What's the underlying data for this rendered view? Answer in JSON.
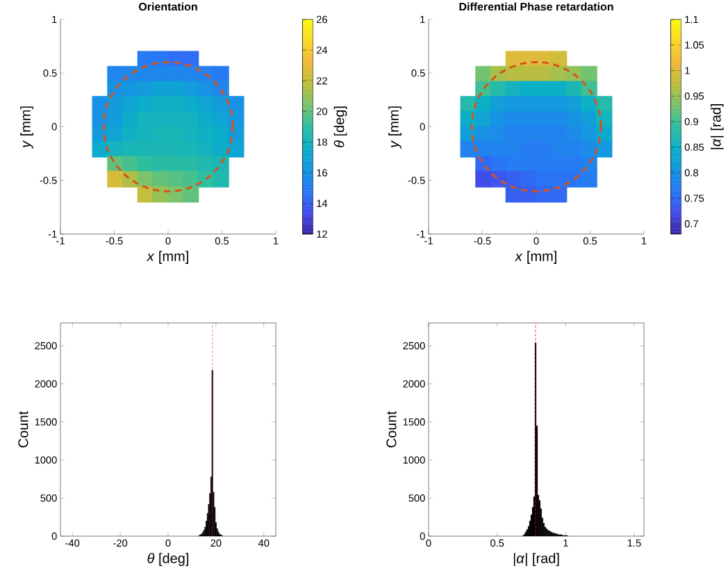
{
  "chart_data": [
    {
      "type": "scatter",
      "title": "Orientation",
      "xlabel": "*x* [mm]",
      "ylabel": "*y* [mm]",
      "clabel": "*θ* [deg]",
      "xlim": [
        -1,
        1
      ],
      "ylim": [
        -1,
        1
      ],
      "xticks": [
        -1,
        -0.5,
        0,
        0.5,
        1
      ],
      "yticks": [
        -1,
        -0.5,
        0,
        0.5,
        1
      ],
      "clim": [
        12,
        26
      ],
      "cticks": [
        12,
        14,
        16,
        18,
        20,
        22,
        24,
        26
      ],
      "series": [
        {
          "type": "scatter",
          "marker": "square",
          "x": [
            -0.21,
            -0.07,
            0.07,
            0.21,
            -0.49,
            -0.35,
            -0.21,
            -0.07,
            0.07,
            0.21,
            0.35,
            0.49,
            -0.49,
            -0.35,
            -0.21,
            -0.07,
            0.07,
            0.21,
            0.35,
            0.49,
            -0.63,
            -0.49,
            -0.35,
            -0.21,
            -0.07,
            0.07,
            0.21,
            0.35,
            0.49,
            0.63,
            -0.63,
            -0.49,
            -0.35,
            -0.21,
            -0.07,
            0.07,
            0.21,
            0.35,
            0.49,
            0.63,
            -0.63,
            -0.49,
            -0.35,
            -0.21,
            -0.07,
            0.07,
            0.21,
            0.35,
            0.49,
            0.63,
            -0.63,
            -0.49,
            -0.35,
            -0.21,
            -0.07,
            0.07,
            0.21,
            0.35,
            0.49,
            0.63,
            -0.49,
            -0.35,
            -0.21,
            -0.07,
            0.07,
            0.21,
            0.35,
            0.49,
            -0.49,
            -0.35,
            -0.21,
            -0.07,
            0.07,
            0.21,
            0.35,
            0.49,
            -0.21,
            -0.07,
            0.07,
            0.21
          ],
          "values": [
            0.63,
            0.63,
            0.63,
            0.63,
            0.49,
            0.49,
            0.49,
            0.49,
            0.49,
            0.49,
            0.49,
            0.49,
            0.35,
            0.35,
            0.35,
            0.35,
            0.35,
            0.35,
            0.35,
            0.35,
            0.21,
            0.21,
            0.21,
            0.21,
            0.21,
            0.21,
            0.21,
            0.21,
            0.21,
            0.21,
            0.07,
            0.07,
            0.07,
            0.07,
            0.07,
            0.07,
            0.07,
            0.07,
            0.07,
            0.07,
            -0.07,
            -0.07,
            -0.07,
            -0.07,
            -0.07,
            -0.07,
            -0.07,
            -0.07,
            -0.07,
            -0.07,
            -0.21,
            -0.21,
            -0.21,
            -0.21,
            -0.21,
            -0.21,
            -0.21,
            -0.21,
            -0.21,
            -0.21,
            -0.35,
            -0.35,
            -0.35,
            -0.35,
            -0.35,
            -0.35,
            -0.35,
            -0.35,
            -0.49,
            -0.49,
            -0.49,
            -0.49,
            -0.49,
            -0.49,
            -0.49,
            -0.49,
            -0.63,
            -0.63,
            -0.63,
            -0.63
          ],
          "cvalues": [
            15,
            14.8,
            14.5,
            14.5,
            15.5,
            15.5,
            15.5,
            15.5,
            15.5,
            15.5,
            15.2,
            15,
            16,
            16.2,
            16.5,
            16.8,
            16.8,
            16.5,
            16,
            15.5,
            16,
            16.5,
            17,
            17.5,
            17.8,
            17.8,
            17.5,
            17,
            16.5,
            16,
            16,
            16.5,
            17.5,
            18,
            18,
            18,
            18,
            17.5,
            17,
            16.3,
            16.5,
            17,
            17.8,
            18,
            18.2,
            18.2,
            18,
            17.8,
            17.5,
            16.5,
            17.5,
            18,
            18.2,
            18.3,
            18.3,
            18.3,
            18.2,
            18,
            17.5,
            17,
            20,
            19.5,
            19,
            18.8,
            18.8,
            18.8,
            18.5,
            18.3,
            22.5,
            21.5,
            20.5,
            20,
            19.8,
            19.5,
            19,
            18.5,
            22,
            21,
            20.5,
            20
          ]
        }
      ]
    },
    {
      "type": "scatter",
      "title": "Differential Phase retardation",
      "xlabel": "*x* [mm]",
      "ylabel": "*y* [mm]",
      "clabel": "|*α*| [rad]",
      "xlim": [
        -1,
        1
      ],
      "ylim": [
        -1,
        1
      ],
      "xticks": [
        -1,
        -0.5,
        0,
        0.5,
        1
      ],
      "yticks": [
        -1,
        -0.5,
        0,
        0.5,
        1
      ],
      "clim": [
        0.68,
        1.1
      ],
      "cticks": [
        0.7,
        0.75,
        0.8,
        0.85,
        0.9,
        0.95,
        1,
        1.05,
        1.1
      ],
      "series": [
        {
          "type": "scatter",
          "marker": "square",
          "x": [
            -0.21,
            -0.07,
            0.07,
            0.21,
            -0.49,
            -0.35,
            -0.21,
            -0.07,
            0.07,
            0.21,
            0.35,
            0.49,
            -0.49,
            -0.35,
            -0.21,
            -0.07,
            0.07,
            0.21,
            0.35,
            0.49,
            -0.63,
            -0.49,
            -0.35,
            -0.21,
            -0.07,
            0.07,
            0.21,
            0.35,
            0.49,
            0.63,
            -0.63,
            -0.49,
            -0.35,
            -0.21,
            -0.07,
            0.07,
            0.21,
            0.35,
            0.49,
            0.63,
            -0.63,
            -0.49,
            -0.35,
            -0.21,
            -0.07,
            0.07,
            0.21,
            0.35,
            0.49,
            0.63,
            -0.63,
            -0.49,
            -0.35,
            -0.21,
            -0.07,
            0.07,
            0.21,
            0.35,
            0.49,
            0.63,
            -0.49,
            -0.35,
            -0.21,
            -0.07,
            0.07,
            0.21,
            0.35,
            0.49,
            -0.49,
            -0.35,
            -0.21,
            -0.07,
            0.07,
            0.21,
            0.35,
            0.49,
            -0.21,
            -0.07,
            0.07,
            0.21
          ],
          "values": [
            0.63,
            0.63,
            0.63,
            0.63,
            0.49,
            0.49,
            0.49,
            0.49,
            0.49,
            0.49,
            0.49,
            0.49,
            0.35,
            0.35,
            0.35,
            0.35,
            0.35,
            0.35,
            0.35,
            0.35,
            0.21,
            0.21,
            0.21,
            0.21,
            0.21,
            0.21,
            0.21,
            0.21,
            0.21,
            0.21,
            0.07,
            0.07,
            0.07,
            0.07,
            0.07,
            0.07,
            0.07,
            0.07,
            0.07,
            0.07,
            -0.07,
            -0.07,
            -0.07,
            -0.07,
            -0.07,
            -0.07,
            -0.07,
            -0.07,
            -0.07,
            -0.07,
            -0.21,
            -0.21,
            -0.21,
            -0.21,
            -0.21,
            -0.21,
            -0.21,
            -0.21,
            -0.21,
            -0.21,
            -0.35,
            -0.35,
            -0.35,
            -0.35,
            -0.35,
            -0.35,
            -0.35,
            -0.35,
            -0.49,
            -0.49,
            -0.49,
            -0.49,
            -0.49,
            -0.49,
            -0.49,
            -0.49,
            -0.63,
            -0.63,
            -0.63,
            -0.63
          ],
          "cvalues": [
            1.0,
            1.0,
            1.0,
            0.99,
            0.93,
            0.96,
            0.97,
            0.97,
            0.97,
            0.96,
            0.95,
            0.93,
            0.9,
            0.88,
            0.86,
            0.85,
            0.85,
            0.85,
            0.87,
            0.9,
            0.88,
            0.85,
            0.82,
            0.81,
            0.81,
            0.81,
            0.81,
            0.82,
            0.85,
            0.88,
            0.85,
            0.83,
            0.8,
            0.79,
            0.79,
            0.79,
            0.79,
            0.8,
            0.82,
            0.86,
            0.82,
            0.8,
            0.79,
            0.78,
            0.78,
            0.78,
            0.78,
            0.79,
            0.81,
            0.84,
            0.78,
            0.78,
            0.78,
            0.78,
            0.77,
            0.77,
            0.78,
            0.78,
            0.79,
            0.81,
            0.75,
            0.76,
            0.77,
            0.77,
            0.77,
            0.77,
            0.77,
            0.78,
            0.72,
            0.73,
            0.74,
            0.75,
            0.76,
            0.76,
            0.76,
            0.77,
            0.74,
            0.74,
            0.75,
            0.75
          ]
        }
      ]
    },
    {
      "type": "histogram",
      "xlabel": "*θ* [deg]",
      "ylabel": "Count",
      "color": "#000000",
      "xlim": [
        -45,
        45
      ],
      "xticks": [
        -40,
        -20,
        0,
        20,
        40
      ],
      "ylim": [
        0,
        2800
      ],
      "yticks": [
        0,
        500,
        1000,
        1500,
        2000,
        2500
      ],
      "bins": [
        12.75,
        13.25,
        13.75,
        14.25,
        14.75,
        15.25,
        15.75,
        16.25,
        16.75,
        17.25,
        17.75,
        18.25,
        18.75,
        19.25,
        19.75,
        20.25,
        20.75,
        21.25,
        21.75,
        22.25,
        22.75
      ],
      "values": [
        10,
        20,
        30,
        50,
        80,
        120,
        200,
        300,
        420,
        560,
        780,
        2180,
        580,
        380,
        180,
        100,
        60,
        30,
        20,
        10
      ],
      "ref_lines": [
        {
          "axis": "x",
          "value": 18.6,
          "color": "#ff0000",
          "line_style": "dashed"
        }
      ]
    },
    {
      "type": "histogram",
      "xlabel": "|*α*| [rad]",
      "ylabel": "Count",
      "color": "#000000",
      "xlim": [
        0,
        1.5708
      ],
      "xticks": [
        0,
        0.5,
        1,
        1.5
      ],
      "ylim": [
        0,
        2800
      ],
      "yticks": [
        0,
        500,
        1000,
        1500,
        2000,
        2500
      ],
      "bins": [
        0.685,
        0.695,
        0.705,
        0.715,
        0.725,
        0.735,
        0.745,
        0.755,
        0.765,
        0.775,
        0.785,
        0.795,
        0.805,
        0.815,
        0.825,
        0.835,
        0.845,
        0.855,
        0.865,
        0.875,
        0.885,
        0.895,
        0.905,
        0.915,
        0.925,
        0.935,
        0.945,
        0.955,
        0.965,
        0.975,
        0.985,
        0.995,
        1.005,
        1.015
      ],
      "values": [
        10,
        30,
        60,
        90,
        130,
        200,
        280,
        380,
        520,
        2540,
        1450,
        540,
        470,
        360,
        240,
        170,
        120,
        100,
        80,
        70,
        60,
        50,
        40,
        40,
        30,
        30,
        20,
        20,
        20,
        10,
        10,
        10,
        10
      ],
      "ref_lines": [
        {
          "axis": "x",
          "value": 0.78,
          "color": "#ff0000",
          "line_style": "dashed"
        }
      ]
    }
  ]
}
